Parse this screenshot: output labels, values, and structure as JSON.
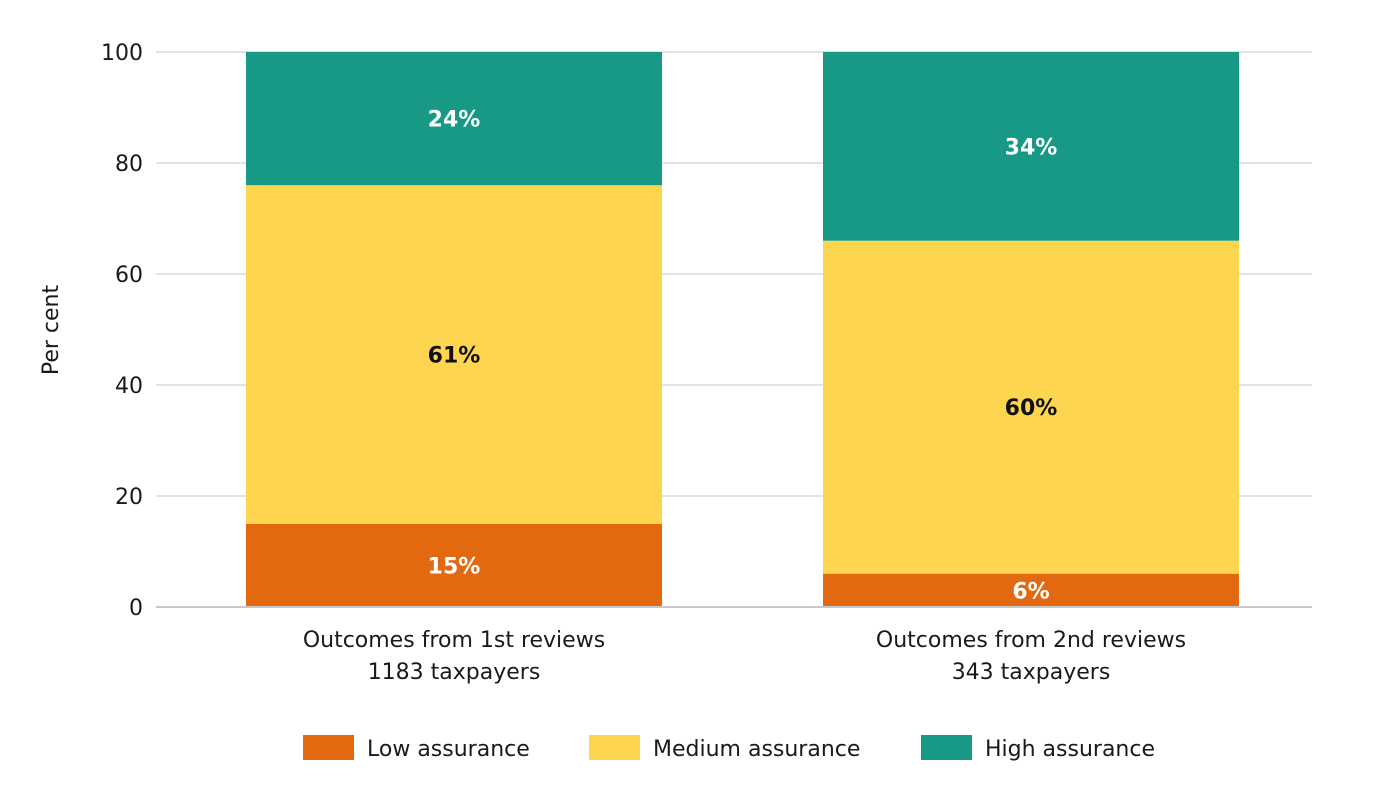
{
  "chart_data": {
    "type": "bar",
    "stacked": true,
    "title": "",
    "xlabel": "",
    "ylabel": "Per cent",
    "ylim": [
      0,
      100
    ],
    "yticks": [
      0,
      20,
      40,
      60,
      80,
      100
    ],
    "grid": true,
    "legend_position": "bottom-center",
    "categories": [
      [
        "Outcomes from 1st reviews",
        "1183 taxpayers"
      ],
      [
        "Outcomes from 2nd reviews",
        "343 taxpayers"
      ]
    ],
    "series": [
      {
        "name": "Low assurance",
        "color": "#e2690f",
        "label_color": "#ffffff",
        "values": [
          15,
          6
        ],
        "labels": [
          "15%",
          "6%"
        ]
      },
      {
        "name": "Medium assurance",
        "color": "#fdd54f",
        "label_color": "#111111",
        "values": [
          61,
          60
        ],
        "labels": [
          "61%",
          "60%"
        ]
      },
      {
        "name": "High assurance",
        "color": "#179985",
        "label_color": "#ffffff",
        "values": [
          24,
          34
        ],
        "labels": [
          "24%",
          "34%"
        ]
      }
    ]
  },
  "colors": {
    "grid": "#d9d9d9",
    "text": "#1a1a1a"
  }
}
